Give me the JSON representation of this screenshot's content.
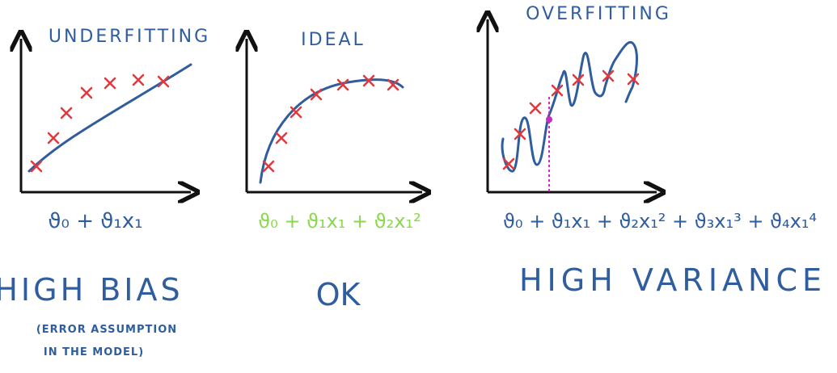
{
  "colors": {
    "ink_blue": "#2f5d9e",
    "mark_red": "#e0393e",
    "formula_green": "#8bd84f",
    "residual_magenta": "#c42fbf",
    "axis_black": "#111111"
  },
  "panels": [
    {
      "title": "UNDERFITTING",
      "formula": "ϑ₀ + ϑ₁x₁",
      "verdict": "HIGH BIAS",
      "note_lines": [
        "(ERROR ASSUMPTION",
        "IN THE MODEL)"
      ]
    },
    {
      "title": "IDEAL",
      "formula": "ϑ₀ + ϑ₁x₁ + ϑ₂x₁²",
      "verdict": "OK"
    },
    {
      "title": "OVERFITTING",
      "formula": "ϑ₀ + ϑ₁x₁ + ϑ₂x₁² + ϑ₃x₁³ + ϑ₄x₁⁴",
      "verdict": "HIGH VARIANCE"
    }
  ]
}
